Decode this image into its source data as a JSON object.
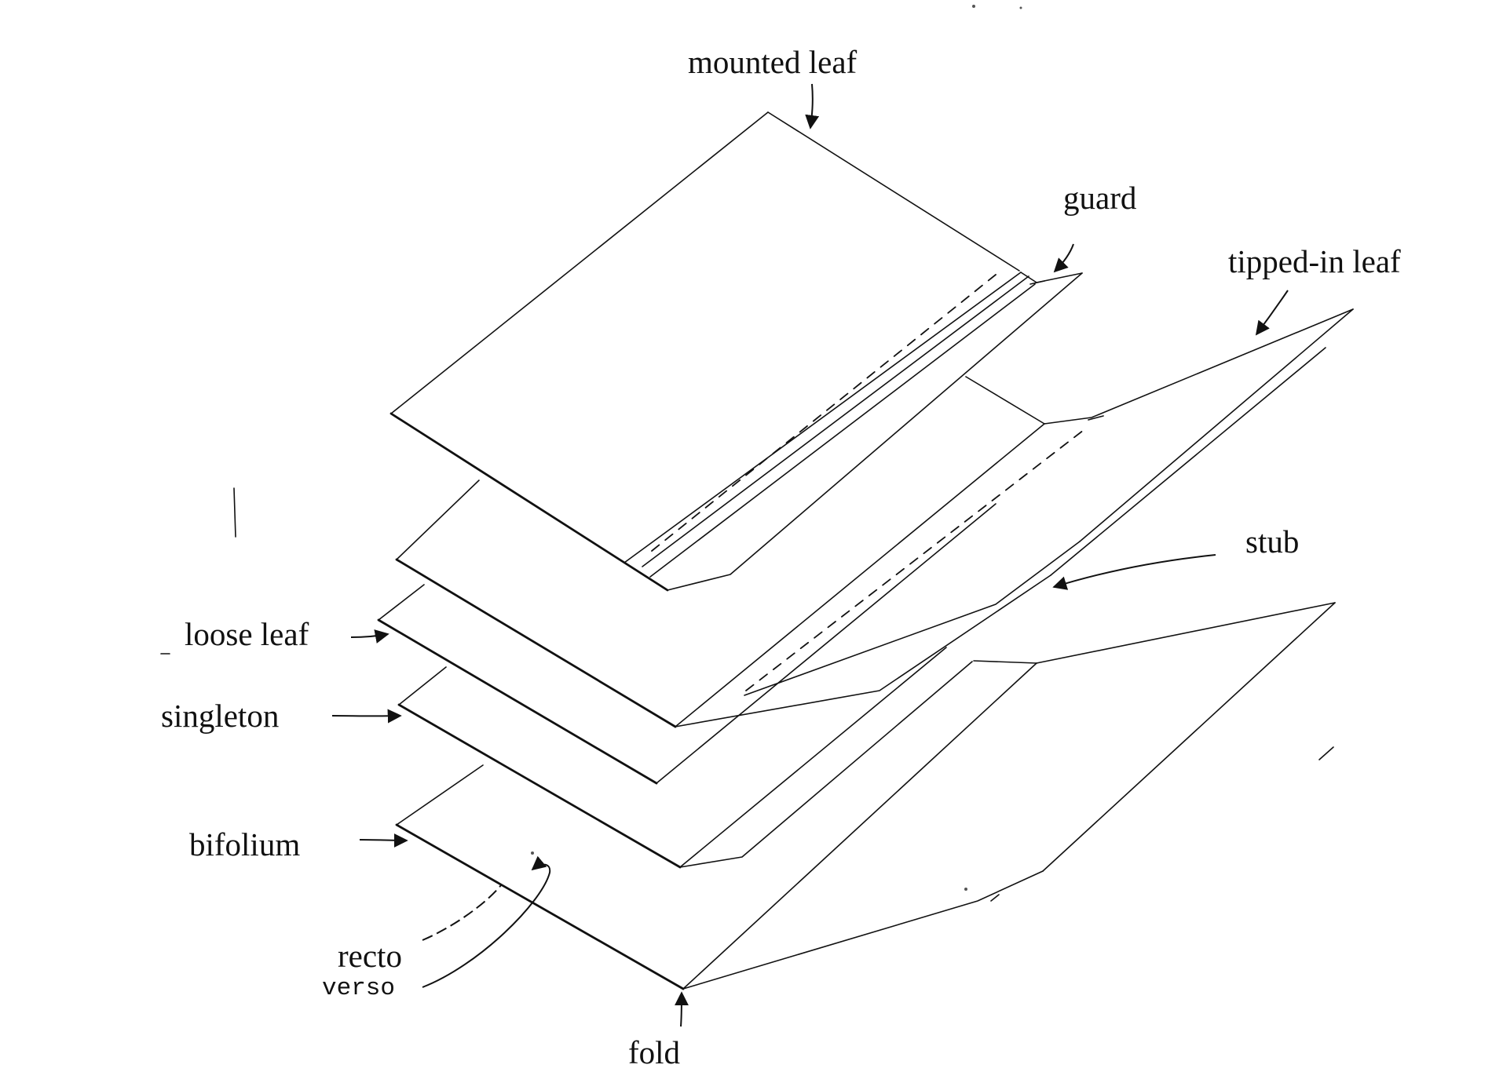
{
  "labels": {
    "mounted_leaf": "mounted leaf",
    "guard": "guard",
    "tipped_in_leaf": "tipped-in leaf",
    "stub": "stub",
    "loose_leaf": "loose leaf",
    "singleton": "singleton",
    "bifolium": "bifolium",
    "recto": "recto",
    "verso": "verso",
    "fold": "fold"
  }
}
